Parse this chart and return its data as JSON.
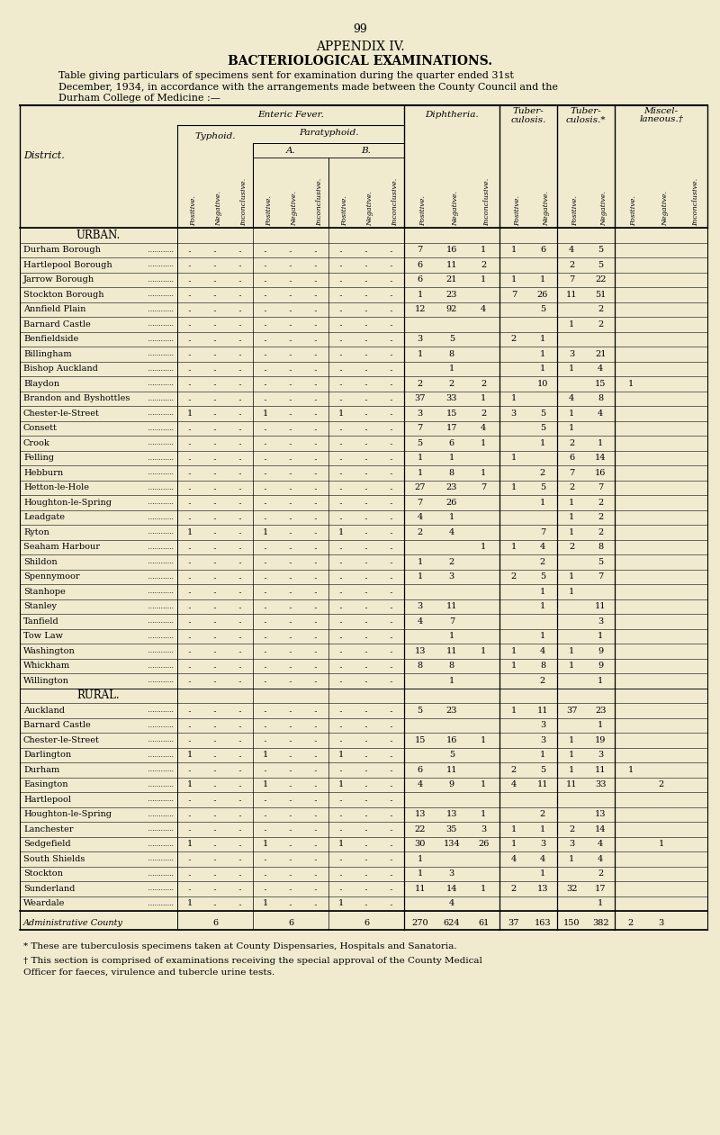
{
  "page_number": "99",
  "appendix_title": "APPENDIX IV.",
  "section_title": "BACTERIOLOGICAL EXAMINATIONS.",
  "desc_line1": "Table giving particulars of specimens sent for examination during the quarter ended 31st",
  "desc_line2": "December, 1934, in accordance with the arrangements made between the County Council and the",
  "desc_line3": "Durham College of Medicine :—",
  "col_headers": [
    "Positive.",
    "Negative.",
    "Inconclusive.",
    "Positive.",
    "Negative.",
    "Inconclusive.",
    "Positive.",
    "Negative.",
    "Inconclusive.",
    "Positive.",
    "Negative.",
    "Inconclusive.",
    "Positive.",
    "Negative.",
    "Positive.",
    "Negative.",
    "Positive.",
    "Negative.",
    "Inconclusive."
  ],
  "urban_rows": [
    [
      "Durham Borough",
      "",
      "",
      "",
      "",
      "",
      "",
      "",
      "",
      "",
      "7",
      "16",
      "1",
      "1",
      "6",
      "4",
      "5",
      "",
      "",
      ""
    ],
    [
      "Hartlepool Borough",
      "",
      "",
      "",
      "",
      "",
      "",
      "",
      "",
      "",
      "6",
      "11",
      "2",
      "",
      "",
      "2",
      "5",
      "",
      "",
      ""
    ],
    [
      "Jarrow Borough",
      "",
      "",
      "",
      "",
      "",
      "",
      "",
      "",
      "",
      "6",
      "21",
      "1",
      "1",
      "1",
      "7",
      "22",
      "",
      "",
      ""
    ],
    [
      "Stockton Borough",
      "",
      "",
      "",
      "",
      "",
      "",
      "",
      "",
      "",
      "1",
      "23",
      "",
      "7",
      "26",
      "11",
      "51",
      "",
      "",
      ""
    ],
    [
      "Annfield Plain",
      "",
      "",
      "",
      "",
      "",
      "",
      "",
      "",
      "",
      "12",
      "92",
      "4",
      "",
      "5",
      "",
      "2",
      "",
      "",
      ""
    ],
    [
      "Barnard Castle",
      "",
      "",
      "",
      "",
      "",
      "",
      "",
      "",
      "",
      "",
      "",
      "",
      "",
      "",
      "1",
      "2",
      "",
      "",
      ""
    ],
    [
      "Benfieldside",
      "",
      "",
      "",
      "",
      "",
      "",
      "",
      "",
      "",
      "3",
      "5",
      "",
      "2",
      "1",
      "",
      "",
      "",
      "",
      ""
    ],
    [
      "Billingham",
      "",
      "",
      "",
      "",
      "",
      "",
      "",
      "",
      "",
      "1",
      "8",
      "",
      "",
      "1",
      "3",
      "21",
      "",
      "",
      ""
    ],
    [
      "Bishop Auckland",
      "",
      "",
      "",
      "",
      "",
      "",
      "",
      "",
      "",
      "",
      "1",
      "",
      "",
      "1",
      "1",
      "4",
      "",
      "",
      ""
    ],
    [
      "Blaydon",
      "",
      "",
      "",
      "",
      "",
      "",
      "",
      "",
      "",
      "2",
      "2",
      "2",
      "",
      "10",
      "",
      "15",
      "1",
      "",
      ""
    ],
    [
      "Brandon and Byshottles",
      "",
      "",
      "",
      "",
      "",
      "",
      "",
      "",
      "",
      "37",
      "33",
      "1",
      "1",
      "",
      "4",
      "8",
      "",
      "",
      ""
    ],
    [
      "Chester-le-Street",
      "1",
      "",
      "",
      "1",
      "",
      "",
      "1",
      "",
      "",
      "3",
      "15",
      "2",
      "3",
      "5",
      "1",
      "4",
      "",
      "",
      ""
    ],
    [
      "Consett",
      "",
      "",
      "",
      "",
      "",
      "",
      "",
      "",
      "",
      "7",
      "17",
      "4",
      "",
      "5",
      "1",
      "",
      "",
      "",
      ""
    ],
    [
      "Crook",
      "",
      "",
      "",
      "",
      "",
      "",
      "",
      "",
      "",
      "5",
      "6",
      "1",
      "",
      "1",
      "2",
      "1",
      "",
      "",
      ""
    ],
    [
      "Felling",
      "",
      "",
      "",
      "",
      "",
      "",
      "",
      "",
      "",
      "1",
      "1",
      "",
      "1",
      "",
      "6",
      "14",
      "",
      "",
      ""
    ],
    [
      "Hebburn",
      "",
      "",
      "",
      "",
      "",
      "",
      "",
      "",
      "",
      "1",
      "8",
      "1",
      "",
      "2",
      "7",
      "16",
      "",
      "",
      ""
    ],
    [
      "Hetton-le-Hole",
      "",
      "",
      "",
      "",
      "",
      "",
      "",
      "",
      "",
      "27",
      "23",
      "7",
      "1",
      "5",
      "2",
      "7",
      "",
      "",
      ""
    ],
    [
      "Houghton-le-Spring",
      "",
      "",
      "",
      "",
      "",
      "",
      "",
      "",
      "",
      "7",
      "26",
      "",
      "",
      "1",
      "1",
      "2",
      "",
      "",
      ""
    ],
    [
      "Leadgate",
      "",
      "",
      "",
      "",
      "",
      "",
      "",
      "",
      "",
      "4",
      "1",
      "",
      "",
      "",
      "1",
      "2",
      "",
      "",
      ""
    ],
    [
      "Ryton",
      "1",
      "",
      "",
      "1",
      "",
      "",
      "1",
      "",
      "",
      "2",
      "4",
      "",
      "",
      "7",
      "1",
      "2",
      "",
      "",
      ""
    ],
    [
      "Seaham Harbour",
      "",
      "",
      "",
      "",
      "",
      "",
      "",
      "",
      "",
      "",
      "",
      "1",
      "1",
      "4",
      "2",
      "8",
      "",
      "",
      ""
    ],
    [
      "Shildon",
      "",
      "",
      "",
      "",
      "",
      "",
      "",
      "",
      "",
      "1",
      "2",
      "",
      "",
      "2",
      "",
      "5",
      "",
      "",
      ""
    ],
    [
      "Spennymoor",
      "",
      "",
      "",
      "",
      "",
      "",
      "",
      "",
      "",
      "1",
      "3",
      "",
      "2",
      "5",
      "1",
      "7",
      "",
      "",
      ""
    ],
    [
      "Stanhope",
      "",
      "",
      "",
      "",
      "",
      "",
      "",
      "",
      "",
      "",
      "",
      "",
      "",
      "1",
      "1",
      "",
      "",
      "",
      ""
    ],
    [
      "Stanley",
      "",
      "",
      "",
      "",
      "",
      "",
      "",
      "",
      "",
      "3",
      "11",
      "",
      "",
      "1",
      "",
      "11",
      "",
      "",
      ""
    ],
    [
      "Tanfield",
      "",
      "",
      "",
      "",
      "",
      "",
      "",
      "",
      "",
      "4",
      "7",
      "",
      "",
      "",
      "",
      "3",
      "",
      "",
      ""
    ],
    [
      "Tow Law",
      "",
      "",
      "",
      "",
      "",
      "",
      "",
      "",
      "",
      "",
      "1",
      "",
      "",
      "1",
      "",
      "1",
      "",
      "",
      ""
    ],
    [
      "Washington",
      "",
      "",
      "",
      "",
      "",
      "",
      "",
      "",
      "",
      "13",
      "11",
      "1",
      "1",
      "4",
      "1",
      "9",
      "",
      "",
      ""
    ],
    [
      "Whickham",
      "",
      "",
      "",
      "",
      "",
      "",
      "",
      "",
      "",
      "8",
      "8",
      "",
      "1",
      "8",
      "1",
      "9",
      "",
      "",
      ""
    ],
    [
      "Willington",
      "",
      "",
      "",
      "",
      "",
      "",
      "",
      "",
      "",
      "",
      "1",
      "",
      "",
      "2",
      "",
      "1",
      "",
      "",
      ""
    ]
  ],
  "rural_rows": [
    [
      "Auckland",
      "",
      "",
      "",
      "",
      "",
      "",
      "",
      "",
      "",
      "5",
      "23",
      "",
      "1",
      "11",
      "37",
      "23",
      "",
      "",
      ""
    ],
    [
      "Barnard Castle",
      "",
      "",
      "",
      "",
      "",
      "",
      "",
      "",
      "",
      "",
      "",
      "",
      "",
      "3",
      "",
      "1",
      "",
      "",
      ""
    ],
    [
      "Chester-le-Street",
      "",
      "",
      "",
      "",
      "",
      "",
      "",
      "",
      "",
      "15",
      "16",
      "1",
      "",
      "3",
      "1",
      "19",
      "",
      "",
      ""
    ],
    [
      "Darlington",
      "1",
      "",
      "",
      "1",
      "",
      "",
      "1",
      "",
      "",
      "",
      "5",
      "",
      "",
      "1",
      "1",
      "3",
      "",
      "",
      ""
    ],
    [
      "Durham",
      "",
      "",
      "",
      "",
      "",
      "",
      "",
      "",
      "",
      "6",
      "11",
      "",
      "2",
      "5",
      "1",
      "11",
      "1",
      "",
      ""
    ],
    [
      "Easington",
      "1",
      "",
      "",
      "1",
      "",
      "",
      "1",
      "",
      "",
      "4",
      "9",
      "1",
      "4",
      "11",
      "11",
      "33",
      "",
      "2",
      ""
    ],
    [
      "Hartlepool",
      "",
      "",
      "",
      "",
      "",
      "",
      "",
      "",
      "",
      "",
      "",
      "",
      "",
      "",
      "",
      "",
      "",
      "",
      ""
    ],
    [
      "Houghton-le-Spring",
      "",
      "",
      "",
      "",
      "",
      "",
      "",
      "",
      "",
      "13",
      "13",
      "1",
      "",
      "2",
      "",
      "13",
      "",
      "",
      ""
    ],
    [
      "Lanchester",
      "",
      "",
      "",
      "",
      "",
      "",
      "",
      "",
      "",
      "22",
      "35",
      "3",
      "1",
      "1",
      "2",
      "14",
      "",
      "",
      ""
    ],
    [
      "Sedgefield",
      "1",
      "",
      "",
      "1",
      "",
      "",
      "1",
      "",
      "",
      "30",
      "134",
      "26",
      "1",
      "3",
      "3",
      "4",
      "",
      "1",
      ""
    ],
    [
      "South Shields",
      "",
      "",
      "",
      "",
      "",
      "",
      "",
      "",
      "",
      "1",
      "",
      "",
      "4",
      "4",
      "1",
      "4",
      "",
      "",
      ""
    ],
    [
      "Stockton",
      "",
      "",
      "",
      "",
      "",
      "",
      "",
      "",
      "",
      "1",
      "3",
      "",
      "",
      "1",
      "",
      "2",
      "",
      "",
      ""
    ],
    [
      "Sunderland",
      "",
      "",
      "",
      "",
      "",
      "",
      "",
      "",
      "",
      "11",
      "14",
      "1",
      "2",
      "13",
      "32",
      "17",
      "",
      "",
      ""
    ],
    [
      "Weardale",
      "1",
      "",
      "",
      "1",
      "",
      "",
      "1",
      "",
      "",
      "",
      "4",
      "",
      "",
      "",
      "",
      "1",
      "",
      "",
      ""
    ]
  ],
  "total_row": [
    "Administrative County",
    "",
    "6",
    "",
    "",
    "6",
    "",
    "",
    "6",
    "",
    "270",
    "624",
    "61",
    "37",
    "163",
    "150",
    "382",
    "2",
    "3",
    ""
  ],
  "footnote1": "* These are tuberculosis specimens taken at County Dispensaries, Hospitals and Sanatoria.",
  "footnote2a": "† This section is comprised of examinations receiving the special approval of the County Medical",
  "footnote2b": "Officer for faeces, virulence and tubercle urine tests.",
  "bg_color": "#f0ebcf"
}
